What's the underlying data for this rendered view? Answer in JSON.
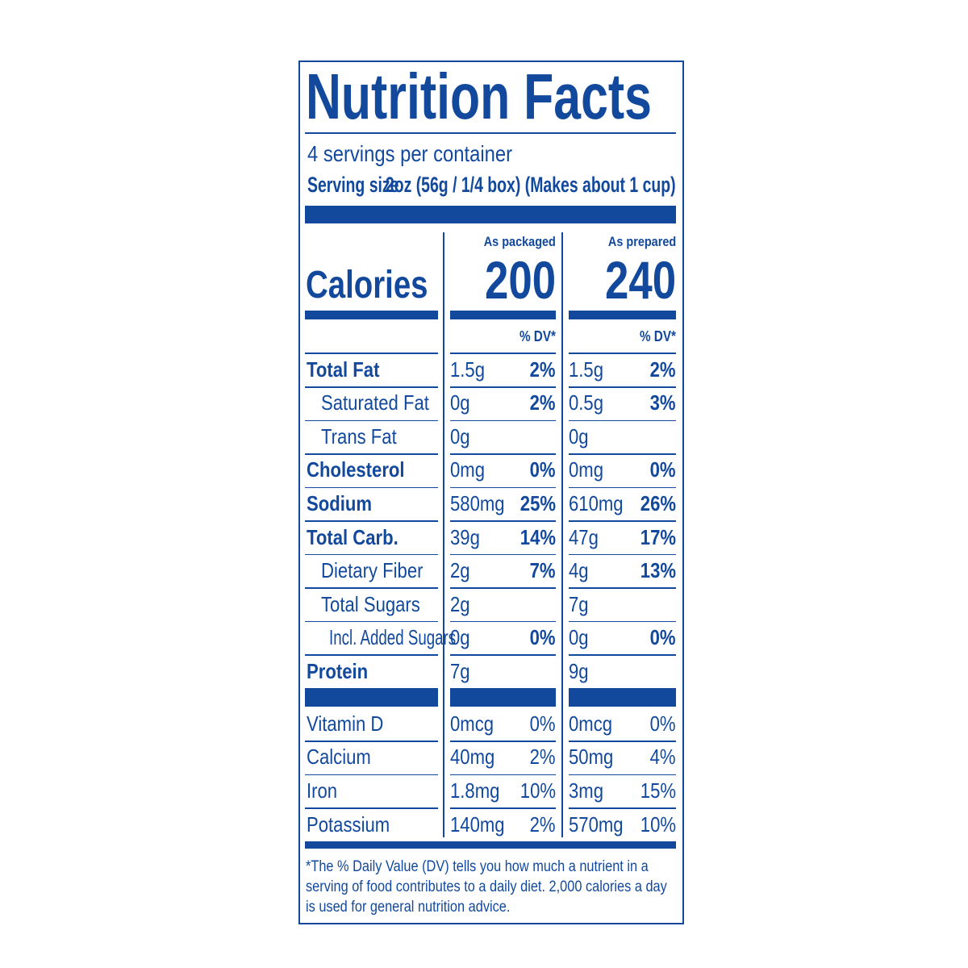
{
  "title": "Nutrition Facts",
  "servings": "4 servings per container",
  "serving_size": {
    "label": "Serving size",
    "value": "2oz (56g / 1/4 box) (Makes about 1 cup)"
  },
  "calories": {
    "label": "Calories",
    "columns": [
      {
        "header": "As packaged",
        "value": "200",
        "dv_header": "% DV*"
      },
      {
        "header": "As prepared",
        "value": "240",
        "dv_header": "% DV*"
      }
    ]
  },
  "nutrients": [
    {
      "name": "Total Fat",
      "as_packaged": {
        "amount": "1.5g",
        "dv": "2%"
      },
      "as_prepared": {
        "amount": "1.5g",
        "dv": "2%"
      },
      "subitems": [
        {
          "name": "Saturated Fat",
          "as_packaged": {
            "amount": "0g",
            "dv": "2%"
          },
          "as_prepared": {
            "amount": "0.5g",
            "dv": "3%"
          }
        },
        {
          "name": "Trans Fat",
          "as_packaged": {
            "amount": "0g"
          },
          "as_prepared": {
            "amount": "0g"
          }
        }
      ]
    },
    {
      "name": "Cholesterol",
      "as_packaged": {
        "amount": "0mg",
        "dv": "0%"
      },
      "as_prepared": {
        "amount": "0mg",
        "dv": "0%"
      }
    },
    {
      "name": "Sodium",
      "as_packaged": {
        "amount": "580mg",
        "dv": "25%"
      },
      "as_prepared": {
        "amount": "610mg",
        "dv": "26%"
      }
    },
    {
      "name": "Total Carb.",
      "as_packaged": {
        "amount": "39g",
        "dv": "14%"
      },
      "as_prepared": {
        "amount": "47g",
        "dv": "17%"
      },
      "subitems": [
        {
          "name": "Dietary Fiber",
          "as_packaged": {
            "amount": "2g",
            "dv": "7%"
          },
          "as_prepared": {
            "amount": "4g",
            "dv": "13%"
          }
        },
        {
          "name": "Total Sugars",
          "as_packaged": {
            "amount": "2g"
          },
          "as_prepared": {
            "amount": "7g"
          },
          "subitems": [
            {
              "name": "Incl. Added Sugars",
              "as_packaged": {
                "amount": "0g",
                "dv": "0%"
              },
              "as_prepared": {
                "amount": "0g",
                "dv": "0%"
              }
            }
          ]
        }
      ]
    },
    {
      "name": "Protein",
      "as_packaged": {
        "amount": "7g"
      },
      "as_prepared": {
        "amount": "9g"
      }
    }
  ],
  "vitamins_minerals": [
    {
      "name": "Vitamin D",
      "as_packaged": {
        "amount": "0mcg",
        "dv": "0%"
      },
      "as_prepared": {
        "amount": "0mcg",
        "dv": "0%"
      }
    },
    {
      "name": "Calcium",
      "as_packaged": {
        "amount": "40mg",
        "dv": "2%"
      },
      "as_prepared": {
        "amount": "50mg",
        "dv": "4%"
      }
    },
    {
      "name": "Iron",
      "as_packaged": {
        "amount": "1.8mg",
        "dv": "10%"
      },
      "as_prepared": {
        "amount": "3mg",
        "dv": "15%"
      }
    },
    {
      "name": "Potassium",
      "as_packaged": {
        "amount": "140mg",
        "dv": "2%"
      },
      "as_prepared": {
        "amount": "570mg",
        "dv": "10%"
      }
    }
  ],
  "footnote": [
    "*The % Daily Value (DV) tells you how much a nutrient in a",
    "serving of food contributes to a daily diet. 2,000 calories a day",
    "is used for general nutrition advice."
  ]
}
